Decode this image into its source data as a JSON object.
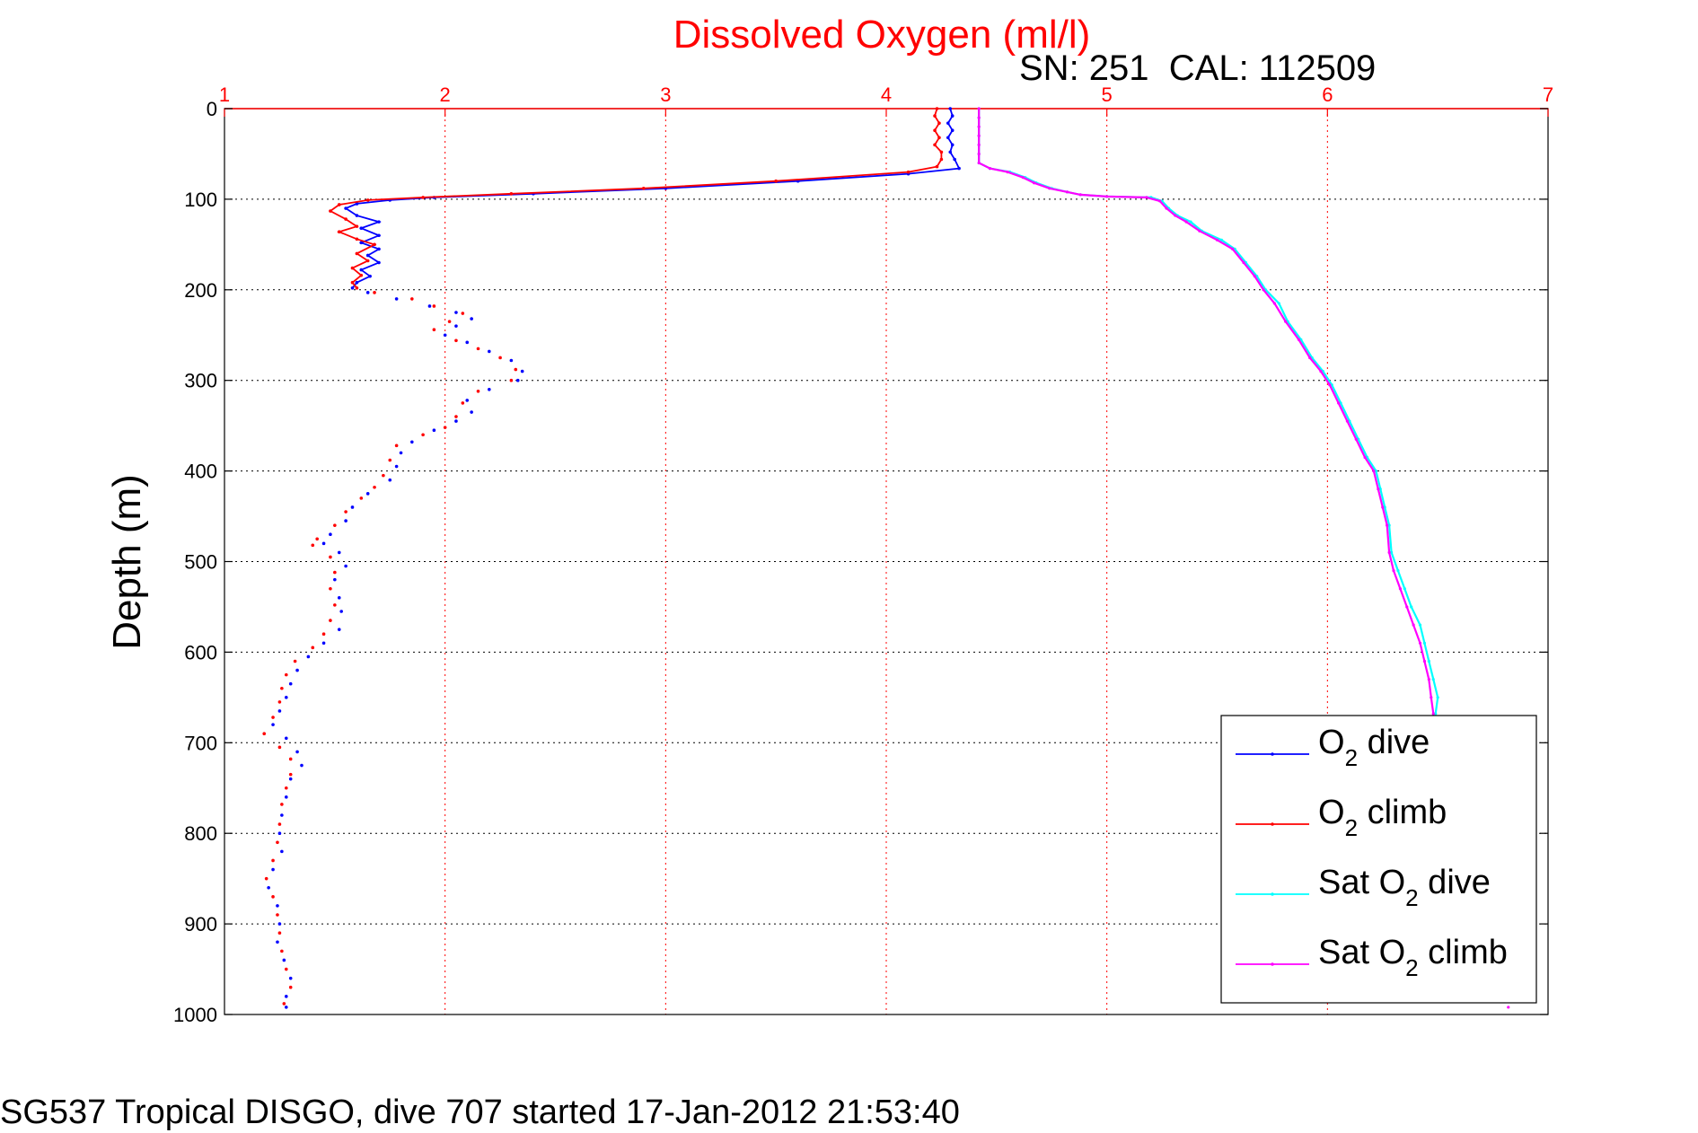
{
  "chart_data": {
    "type": "scatter",
    "title": "Dissolved Oxygen (ml/l)",
    "subtitle": "SN: 251  CAL: 112509",
    "footer": "SG537 Tropical DISGO, dive 707 started 17-Jan-2012 21:53:40",
    "xlabel": "",
    "ylabel": "Depth (m)",
    "xlim": [
      1,
      7
    ],
    "ylim": [
      0,
      1000
    ],
    "y_reversed": true,
    "x_axis_position": "top",
    "xticks": [
      "1",
      "2",
      "3",
      "4",
      "5",
      "6",
      "7"
    ],
    "yticks": [
      "0",
      "100",
      "200",
      "300",
      "400",
      "500",
      "600",
      "700",
      "800",
      "900",
      "1000"
    ],
    "grid": true,
    "legend_position": "bottom-right",
    "colors": {
      "title": "#ff0000",
      "o2_dive": "#0000ff",
      "o2_climb": "#ff0000",
      "sat_dive": "#00ffff",
      "sat_climb": "#ff00ff"
    },
    "series": [
      {
        "name": "O2 dive",
        "legend_main": "O",
        "legend_sub": "2",
        "legend_rest": " dive",
        "color": "#0000ff",
        "points": [
          [
            4.29,
            0
          ],
          [
            4.3,
            8
          ],
          [
            4.28,
            16
          ],
          [
            4.3,
            24
          ],
          [
            4.28,
            32
          ],
          [
            4.3,
            40
          ],
          [
            4.29,
            48
          ],
          [
            4.31,
            56
          ],
          [
            4.33,
            66
          ],
          [
            4.1,
            72
          ],
          [
            3.6,
            80
          ],
          [
            3.0,
            88
          ],
          [
            2.4,
            94
          ],
          [
            1.95,
            98
          ],
          [
            1.75,
            101
          ],
          [
            1.6,
            105
          ],
          [
            1.55,
            110
          ],
          [
            1.6,
            118
          ],
          [
            1.7,
            125
          ],
          [
            1.62,
            132
          ],
          [
            1.7,
            140
          ],
          [
            1.62,
            148
          ],
          [
            1.7,
            155
          ],
          [
            1.65,
            162
          ],
          [
            1.7,
            170
          ],
          [
            1.62,
            178
          ],
          [
            1.66,
            185
          ],
          [
            1.6,
            192
          ],
          [
            1.58,
            198
          ],
          [
            1.65,
            203
          ],
          [
            1.78,
            210
          ],
          [
            1.93,
            218
          ],
          [
            2.05,
            225
          ],
          [
            2.12,
            232
          ],
          [
            2.05,
            240
          ],
          [
            2.0,
            250
          ],
          [
            2.1,
            258
          ],
          [
            2.2,
            268
          ],
          [
            2.3,
            278
          ],
          [
            2.35,
            290
          ],
          [
            2.33,
            300
          ],
          [
            2.2,
            310
          ],
          [
            2.1,
            322
          ],
          [
            2.12,
            335
          ],
          [
            2.05,
            345
          ],
          [
            1.95,
            355
          ],
          [
            1.85,
            368
          ],
          [
            1.8,
            380
          ],
          [
            1.78,
            395
          ],
          [
            1.75,
            410
          ],
          [
            1.65,
            425
          ],
          [
            1.58,
            440
          ],
          [
            1.55,
            455
          ],
          [
            1.48,
            470
          ],
          [
            1.45,
            480
          ],
          [
            1.52,
            490
          ],
          [
            1.55,
            505
          ],
          [
            1.5,
            520
          ],
          [
            1.52,
            540
          ],
          [
            1.53,
            555
          ],
          [
            1.52,
            575
          ],
          [
            1.45,
            590
          ],
          [
            1.38,
            605
          ],
          [
            1.33,
            620
          ],
          [
            1.3,
            635
          ],
          [
            1.28,
            650
          ],
          [
            1.25,
            665
          ],
          [
            1.22,
            680
          ],
          [
            1.28,
            695
          ],
          [
            1.33,
            710
          ],
          [
            1.35,
            725
          ],
          [
            1.3,
            740
          ],
          [
            1.28,
            760
          ],
          [
            1.26,
            780
          ],
          [
            1.25,
            800
          ],
          [
            1.26,
            820
          ],
          [
            1.22,
            840
          ],
          [
            1.2,
            860
          ],
          [
            1.24,
            880
          ],
          [
            1.25,
            900
          ],
          [
            1.24,
            920
          ],
          [
            1.27,
            940
          ],
          [
            1.3,
            960
          ],
          [
            1.28,
            980
          ],
          [
            1.28,
            992
          ]
        ]
      },
      {
        "name": "O2 climb",
        "legend_main": "O",
        "legend_sub": "2",
        "legend_rest": " climb",
        "color": "#ff0000",
        "points": [
          [
            4.23,
            0
          ],
          [
            4.22,
            8
          ],
          [
            4.24,
            16
          ],
          [
            4.22,
            24
          ],
          [
            4.24,
            32
          ],
          [
            4.22,
            40
          ],
          [
            4.25,
            48
          ],
          [
            4.25,
            56
          ],
          [
            4.23,
            64
          ],
          [
            4.1,
            70
          ],
          [
            3.5,
            80
          ],
          [
            2.9,
            88
          ],
          [
            2.3,
            94
          ],
          [
            1.9,
            98
          ],
          [
            1.65,
            101
          ],
          [
            1.52,
            106
          ],
          [
            1.48,
            113
          ],
          [
            1.55,
            122
          ],
          [
            1.6,
            130
          ],
          [
            1.52,
            136
          ],
          [
            1.6,
            144
          ],
          [
            1.68,
            150
          ],
          [
            1.6,
            160
          ],
          [
            1.65,
            168
          ],
          [
            1.58,
            176
          ],
          [
            1.62,
            184
          ],
          [
            1.58,
            192
          ],
          [
            1.6,
            198
          ],
          [
            1.68,
            203
          ],
          [
            1.85,
            210
          ],
          [
            1.95,
            218
          ],
          [
            2.08,
            226
          ],
          [
            2.02,
            235
          ],
          [
            1.95,
            244
          ],
          [
            2.05,
            256
          ],
          [
            2.15,
            265
          ],
          [
            2.25,
            275
          ],
          [
            2.32,
            288
          ],
          [
            2.3,
            300
          ],
          [
            2.15,
            312
          ],
          [
            2.08,
            325
          ],
          [
            2.05,
            340
          ],
          [
            2.0,
            352
          ],
          [
            1.9,
            360
          ],
          [
            1.78,
            372
          ],
          [
            1.75,
            388
          ],
          [
            1.72,
            405
          ],
          [
            1.68,
            418
          ],
          [
            1.62,
            430
          ],
          [
            1.55,
            445
          ],
          [
            1.5,
            460
          ],
          [
            1.42,
            475
          ],
          [
            1.4,
            482
          ],
          [
            1.48,
            495
          ],
          [
            1.5,
            512
          ],
          [
            1.48,
            530
          ],
          [
            1.5,
            548
          ],
          [
            1.48,
            565
          ],
          [
            1.45,
            580
          ],
          [
            1.4,
            595
          ],
          [
            1.32,
            610
          ],
          [
            1.28,
            625
          ],
          [
            1.26,
            640
          ],
          [
            1.25,
            655
          ],
          [
            1.22,
            672
          ],
          [
            1.18,
            690
          ],
          [
            1.25,
            705
          ],
          [
            1.3,
            718
          ],
          [
            1.3,
            735
          ],
          [
            1.28,
            750
          ],
          [
            1.26,
            768
          ],
          [
            1.25,
            790
          ],
          [
            1.24,
            810
          ],
          [
            1.22,
            830
          ],
          [
            1.19,
            850
          ],
          [
            1.22,
            870
          ],
          [
            1.24,
            890
          ],
          [
            1.25,
            910
          ],
          [
            1.26,
            930
          ],
          [
            1.28,
            950
          ],
          [
            1.3,
            970
          ],
          [
            1.27,
            988
          ]
        ]
      },
      {
        "name": "Sat O2 dive",
        "legend_main": "Sat O",
        "legend_sub": "2",
        "legend_rest": " dive",
        "color": "#00ffff",
        "points": [
          [
            4.42,
            0
          ],
          [
            4.42,
            10
          ],
          [
            4.42,
            20
          ],
          [
            4.42,
            30
          ],
          [
            4.42,
            40
          ],
          [
            4.42,
            50
          ],
          [
            4.42,
            60
          ],
          [
            4.47,
            66
          ],
          [
            4.56,
            70
          ],
          [
            4.63,
            76
          ],
          [
            4.68,
            82
          ],
          [
            4.75,
            88
          ],
          [
            4.82,
            92
          ],
          [
            4.88,
            95
          ],
          [
            5.0,
            97
          ],
          [
            5.2,
            98
          ],
          [
            5.25,
            102
          ],
          [
            5.28,
            110
          ],
          [
            5.32,
            118
          ],
          [
            5.38,
            125
          ],
          [
            5.43,
            135
          ],
          [
            5.52,
            145
          ],
          [
            5.58,
            155
          ],
          [
            5.63,
            170
          ],
          [
            5.68,
            185
          ],
          [
            5.72,
            200
          ],
          [
            5.78,
            215
          ],
          [
            5.82,
            235
          ],
          [
            5.88,
            255
          ],
          [
            5.93,
            275
          ],
          [
            5.98,
            290
          ],
          [
            6.02,
            305
          ],
          [
            6.06,
            325
          ],
          [
            6.1,
            345
          ],
          [
            6.14,
            365
          ],
          [
            6.18,
            385
          ],
          [
            6.22,
            400
          ],
          [
            6.24,
            420
          ],
          [
            6.26,
            440
          ],
          [
            6.28,
            460
          ],
          [
            6.29,
            490
          ],
          [
            6.32,
            510
          ],
          [
            6.35,
            530
          ],
          [
            6.38,
            550
          ],
          [
            6.42,
            570
          ],
          [
            6.44,
            590
          ],
          [
            6.46,
            610
          ],
          [
            6.48,
            630
          ],
          [
            6.5,
            650
          ],
          [
            6.49,
            668
          ]
        ]
      },
      {
        "name": "Sat O2 climb",
        "legend_main": "Sat O",
        "legend_sub": "2",
        "legend_rest": " climb",
        "color": "#ff00ff",
        "points": [
          [
            4.42,
            0
          ],
          [
            4.42,
            10
          ],
          [
            4.42,
            20
          ],
          [
            4.42,
            30
          ],
          [
            4.42,
            40
          ],
          [
            4.42,
            50
          ],
          [
            4.42,
            60
          ],
          [
            4.47,
            66
          ],
          [
            4.55,
            70
          ],
          [
            4.62,
            76
          ],
          [
            4.67,
            82
          ],
          [
            4.74,
            88
          ],
          [
            4.82,
            92
          ],
          [
            4.88,
            95
          ],
          [
            5.0,
            97
          ],
          [
            5.18,
            98
          ],
          [
            5.24,
            102
          ],
          [
            5.27,
            110
          ],
          [
            5.31,
            118
          ],
          [
            5.36,
            125
          ],
          [
            5.42,
            135
          ],
          [
            5.5,
            145
          ],
          [
            5.57,
            155
          ],
          [
            5.62,
            170
          ],
          [
            5.67,
            185
          ],
          [
            5.71,
            200
          ],
          [
            5.76,
            215
          ],
          [
            5.81,
            235
          ],
          [
            5.87,
            255
          ],
          [
            5.92,
            275
          ],
          [
            5.97,
            290
          ],
          [
            6.01,
            305
          ],
          [
            6.05,
            325
          ],
          [
            6.09,
            345
          ],
          [
            6.13,
            365
          ],
          [
            6.17,
            385
          ],
          [
            6.21,
            400
          ],
          [
            6.23,
            420
          ],
          [
            6.25,
            440
          ],
          [
            6.27,
            460
          ],
          [
            6.28,
            490
          ],
          [
            6.3,
            510
          ],
          [
            6.33,
            530
          ],
          [
            6.36,
            550
          ],
          [
            6.39,
            570
          ],
          [
            6.42,
            590
          ],
          [
            6.44,
            610
          ],
          [
            6.46,
            630
          ],
          [
            6.47,
            650
          ],
          [
            6.48,
            668
          ],
          [
            6.82,
            992
          ]
        ]
      }
    ]
  }
}
